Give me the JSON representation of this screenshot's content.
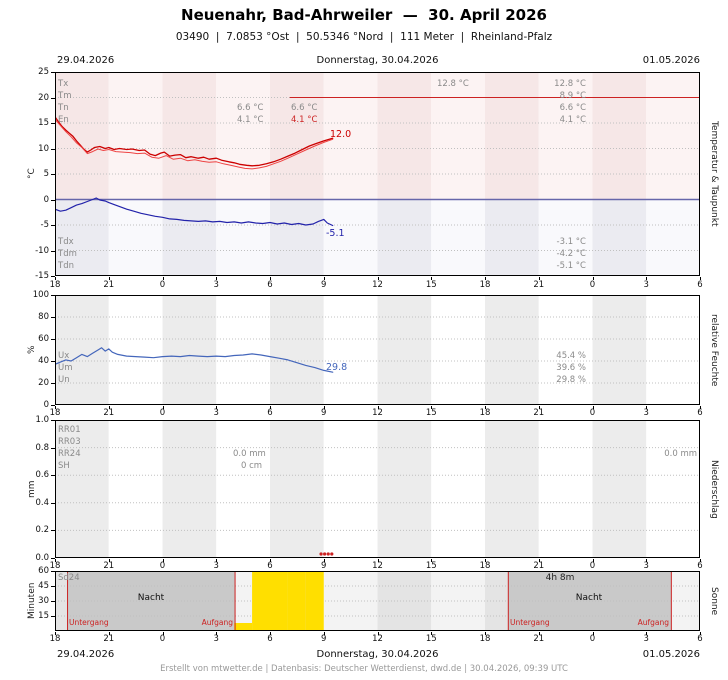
{
  "header": {
    "title": "Neuenahr, Bad-Ahrweiler  —  30. April 2026",
    "subtitle": "03490  |  7.0853 °Ost  |  50.5346 °Nord  |  111 Meter  |  Rheinland-Pfalz"
  },
  "dates": {
    "left": "29.04.2026",
    "center": "Donnerstag, 30.04.2026",
    "right": "01.05.2026"
  },
  "footer": "Erstellt von mtwetter.de | Datenbasis: Deutscher Wetterdienst, dwd.de | 30.04.2026, 09:39 UTC",
  "axis": {
    "x_tick_labels": [
      "18",
      "21",
      "0",
      "3",
      "6",
      "9",
      "12",
      "15",
      "18",
      "21",
      "0",
      "3",
      "6"
    ],
    "p1_yticks": [
      "25",
      "20",
      "15",
      "10",
      "5",
      "0",
      "-5",
      "-10",
      "-15"
    ],
    "p2_yticks": [
      "100",
      "80",
      "60",
      "40",
      "20",
      "0"
    ],
    "p3_yticks": [
      "1.0",
      "0.8",
      "0.6",
      "0.4",
      "0.2",
      "0.0"
    ],
    "p4_yticks": [
      "60",
      "45",
      "30",
      "15"
    ]
  },
  "panel1": {
    "unit_label": "°C",
    "axis_right_label": "Temperatur & Taupunkt",
    "legend_top": [
      "Tx",
      "Tm",
      "Tn",
      "En"
    ],
    "values_right": [
      "12.8 °C",
      "8.9 °C",
      "6.6 °C",
      "4.1 °C"
    ],
    "value_center": "12.8 °C",
    "tn_occurrence": [
      "6.6 °C",
      "6.6 °C"
    ],
    "en_occurrence": [
      "4.1 °C",
      "4.1 °C"
    ],
    "legend_bottom": [
      "Tdx",
      "Tdm",
      "Tdn"
    ],
    "values_bottom_right": [
      "-3.1 °C",
      "-4.2 °C",
      "-5.1 °C"
    ],
    "end_label_temp": "12.0",
    "end_label_dew": "-5.1"
  },
  "panel2": {
    "unit_label": "%",
    "axis_right_label": "relative Feuchte",
    "legend": [
      "Ux",
      "Um",
      "Un"
    ],
    "values_right": [
      "45.4 %",
      "39.6 %",
      "29.8 %"
    ],
    "end_label": "29.8"
  },
  "panel3": {
    "unit_label": "mm",
    "axis_right_label": "Niederschlag",
    "legend": [
      "RR01",
      "RR03",
      "RR24",
      "SH"
    ],
    "value_center_mm": "0.0 mm",
    "value_center_cm": "0 cm",
    "value_right": "0.0 mm"
  },
  "panel4": {
    "unit_label": "Minuten",
    "axis_right_label": "Sonne",
    "sd_label": "Sd24",
    "duration": "4h 8m",
    "night_label": "Nacht",
    "sunset_label": "Untergang",
    "sunrise_label": "Aufgang"
  },
  "colors": {
    "temperature": "#cc0000",
    "temperature_ground": "#ee4444",
    "dewpoint": "#2222aa",
    "humidity": "#4466bb",
    "sunshine": "#ffdf00",
    "night": "#c9c9c9",
    "marker_red": "#cc2222"
  },
  "chart_data": {
    "type": "line",
    "x_axis": {
      "description": "hours since 29.04.2026 18:00 UTC, range 18:00 to 06:00 on 01.05.2026",
      "range": [
        0,
        36
      ],
      "tick_step_hours": 3,
      "tick_labels": [
        "18",
        "21",
        "0",
        "3",
        "6",
        "9",
        "12",
        "15",
        "18",
        "21",
        "0",
        "3",
        "6"
      ]
    },
    "temperature": {
      "title": "Temperatur & Taupunkt",
      "ylabel": "°C",
      "ylim": [
        -15,
        25
      ],
      "stats": {
        "Tx": 12.8,
        "Tm": 8.9,
        "Tn": 6.6,
        "En": 4.1,
        "Tdx": -3.1,
        "Tdm": -4.2,
        "Tdn": -5.1
      },
      "max_line": {
        "value": 20,
        "from_t": 13.1,
        "to_t": 36
      },
      "series": [
        {
          "name": "Temperatur 2m",
          "slug": "temperature-2m-line",
          "color": "#cc0000",
          "width": 1.3,
          "points": [
            [
              0,
              16.2
            ],
            [
              0.2,
              15.2
            ],
            [
              0.4,
              14.3
            ],
            [
              0.6,
              13.6
            ],
            [
              0.8,
              13.0
            ],
            [
              1,
              12.4
            ],
            [
              1.2,
              11.5
            ],
            [
              1.4,
              10.7
            ],
            [
              1.6,
              9.9
            ],
            [
              1.8,
              9.3
            ],
            [
              2,
              9.7
            ],
            [
              2.2,
              10.2
            ],
            [
              2.5,
              10.4
            ],
            [
              2.8,
              10.0
            ],
            [
              3,
              10.2
            ],
            [
              3.3,
              9.8
            ],
            [
              3.6,
              10.0
            ],
            [
              4,
              9.8
            ],
            [
              4.3,
              9.9
            ],
            [
              4.7,
              9.6
            ],
            [
              5,
              9.7
            ],
            [
              5.3,
              8.9
            ],
            [
              5.6,
              8.6
            ],
            [
              5.9,
              9.1
            ],
            [
              6.1,
              9.3
            ],
            [
              6.4,
              8.5
            ],
            [
              6.7,
              8.7
            ],
            [
              7,
              8.8
            ],
            [
              7.3,
              8.2
            ],
            [
              7.6,
              8.4
            ],
            [
              8,
              8.1
            ],
            [
              8.3,
              8.3
            ],
            [
              8.6,
              7.9
            ],
            [
              9,
              8.1
            ],
            [
              9.3,
              7.7
            ],
            [
              9.7,
              7.4
            ],
            [
              10,
              7.2
            ],
            [
              10.3,
              6.9
            ],
            [
              10.7,
              6.7
            ],
            [
              11,
              6.6
            ],
            [
              11.4,
              6.7
            ],
            [
              11.8,
              7.0
            ],
            [
              12.2,
              7.4
            ],
            [
              12.6,
              7.9
            ],
            [
              13,
              8.5
            ],
            [
              13.4,
              9.1
            ],
            [
              13.8,
              9.8
            ],
            [
              14.2,
              10.5
            ],
            [
              14.6,
              11.0
            ],
            [
              15,
              11.5
            ],
            [
              15.5,
              12.0
            ]
          ]
        },
        {
          "name": "Temperatur 5cm",
          "slug": "temperature-5cm-line",
          "color": "#ee4444",
          "width": 1,
          "points": [
            [
              0,
              15.7
            ],
            [
              0.3,
              14.5
            ],
            [
              0.6,
              13.3
            ],
            [
              0.9,
              12.3
            ],
            [
              1.2,
              11.1
            ],
            [
              1.5,
              10.2
            ],
            [
              1.8,
              9.0
            ],
            [
              2.1,
              9.4
            ],
            [
              2.4,
              9.9
            ],
            [
              2.7,
              9.6
            ],
            [
              3,
              9.8
            ],
            [
              3.4,
              9.4
            ],
            [
              3.8,
              9.3
            ],
            [
              4.2,
              9.2
            ],
            [
              4.6,
              9.0
            ],
            [
              5,
              9.1
            ],
            [
              5.4,
              8.3
            ],
            [
              5.8,
              8.1
            ],
            [
              6.2,
              8.6
            ],
            [
              6.6,
              7.9
            ],
            [
              7,
              8.1
            ],
            [
              7.4,
              7.6
            ],
            [
              7.8,
              7.8
            ],
            [
              8.2,
              7.5
            ],
            [
              8.6,
              7.3
            ],
            [
              9,
              7.4
            ],
            [
              9.4,
              7.0
            ],
            [
              9.8,
              6.7
            ],
            [
              10.2,
              6.4
            ],
            [
              10.6,
              6.1
            ],
            [
              11,
              6.0
            ],
            [
              11.4,
              6.2
            ],
            [
              11.8,
              6.5
            ],
            [
              12.2,
              7.0
            ],
            [
              12.6,
              7.5
            ],
            [
              13,
              8.1
            ],
            [
              13.5,
              8.9
            ],
            [
              14,
              9.7
            ],
            [
              14.5,
              10.5
            ],
            [
              15,
              11.2
            ],
            [
              15.5,
              11.8
            ]
          ]
        },
        {
          "name": "Taupunkt",
          "slug": "dewpoint-line",
          "color": "#2222aa",
          "width": 1.2,
          "points": [
            [
              0,
              -1.9
            ],
            [
              0.3,
              -2.3
            ],
            [
              0.6,
              -2.1
            ],
            [
              0.9,
              -1.6
            ],
            [
              1.2,
              -1.1
            ],
            [
              1.5,
              -0.8
            ],
            [
              1.8,
              -0.4
            ],
            [
              2.1,
              0.0
            ],
            [
              2.3,
              0.3
            ],
            [
              2.5,
              -0.1
            ],
            [
              2.8,
              -0.3
            ],
            [
              3,
              -0.6
            ],
            [
              3.3,
              -1.0
            ],
            [
              3.7,
              -1.5
            ],
            [
              4,
              -1.9
            ],
            [
              4.4,
              -2.3
            ],
            [
              4.8,
              -2.7
            ],
            [
              5.2,
              -3.0
            ],
            [
              5.6,
              -3.3
            ],
            [
              6,
              -3.5
            ],
            [
              6.4,
              -3.8
            ],
            [
              6.8,
              -3.9
            ],
            [
              7.2,
              -4.1
            ],
            [
              7.6,
              -4.2
            ],
            [
              8,
              -4.3
            ],
            [
              8.4,
              -4.2
            ],
            [
              8.8,
              -4.4
            ],
            [
              9.2,
              -4.3
            ],
            [
              9.6,
              -4.5
            ],
            [
              10,
              -4.4
            ],
            [
              10.4,
              -4.6
            ],
            [
              10.8,
              -4.4
            ],
            [
              11.2,
              -4.6
            ],
            [
              11.6,
              -4.7
            ],
            [
              12,
              -4.5
            ],
            [
              12.4,
              -4.8
            ],
            [
              12.8,
              -4.6
            ],
            [
              13.2,
              -4.9
            ],
            [
              13.6,
              -4.7
            ],
            [
              14,
              -5.0
            ],
            [
              14.4,
              -4.8
            ],
            [
              14.7,
              -4.3
            ],
            [
              15,
              -3.9
            ],
            [
              15.2,
              -4.6
            ],
            [
              15.5,
              -5.1
            ]
          ]
        }
      ]
    },
    "humidity": {
      "title": "relative Feuchte",
      "ylabel": "%",
      "ylim": [
        0,
        100
      ],
      "stats": {
        "Ux": 45.4,
        "Um": 39.6,
        "Un": 29.8
      },
      "series": [
        {
          "name": "relative Feuchte",
          "slug": "humidity-line",
          "color": "#4466bb",
          "width": 1.2,
          "points": [
            [
              0,
              37
            ],
            [
              0.3,
              39
            ],
            [
              0.6,
              41
            ],
            [
              0.9,
              40
            ],
            [
              1.2,
              43
            ],
            [
              1.5,
              46
            ],
            [
              1.8,
              44
            ],
            [
              2.1,
              47
            ],
            [
              2.4,
              50
            ],
            [
              2.6,
              52
            ],
            [
              2.8,
              49
            ],
            [
              3,
              51
            ],
            [
              3.2,
              48
            ],
            [
              3.5,
              46
            ],
            [
              4,
              44.5
            ],
            [
              4.5,
              44
            ],
            [
              5,
              43.5
            ],
            [
              5.5,
              43
            ],
            [
              6,
              44
            ],
            [
              6.5,
              44.5
            ],
            [
              7,
              44
            ],
            [
              7.5,
              45
            ],
            [
              8,
              44.5
            ],
            [
              8.5,
              44
            ],
            [
              9,
              44.5
            ],
            [
              9.5,
              44
            ],
            [
              10,
              45
            ],
            [
              10.5,
              45.5
            ],
            [
              11,
              46.5
            ],
            [
              11.5,
              45.5
            ],
            [
              12,
              44
            ],
            [
              12.5,
              42.5
            ],
            [
              13,
              41
            ],
            [
              13.5,
              38.5
            ],
            [
              14,
              36
            ],
            [
              14.5,
              34
            ],
            [
              15,
              31.5
            ],
            [
              15.5,
              29.8
            ]
          ]
        }
      ]
    },
    "precipitation": {
      "title": "Niederschlag",
      "ylabel": "mm",
      "ylim": [
        0,
        1.0
      ],
      "stats": {
        "RR24": "0.0 mm",
        "SH": "0 cm",
        "RR_right": "0.0 mm"
      },
      "marker_dots_t": [
        14.85,
        15.05,
        15.25,
        15.45
      ],
      "series": []
    },
    "sunshine": {
      "title": "Sonne",
      "ylabel": "Minuten",
      "ylim": [
        0,
        60
      ],
      "type": "bar",
      "total": "4h 8m",
      "minutes_per_hour": [
        [
          10,
          8
        ],
        [
          11,
          60
        ],
        [
          12,
          60
        ],
        [
          13,
          60
        ],
        [
          14,
          60
        ]
      ],
      "night_periods": [
        [
          0.7,
          10.05
        ],
        [
          25.3,
          34.4
        ]
      ]
    }
  }
}
